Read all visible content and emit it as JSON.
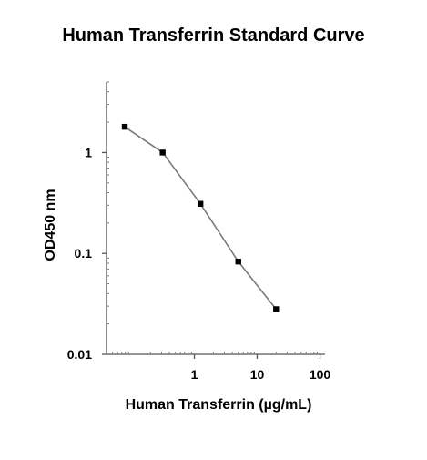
{
  "chart_data": {
    "type": "line",
    "title": "Human Transferrin Standard Curve",
    "xlabel": "Human Transferrin (µg/mL)",
    "ylabel": "OD450 nm",
    "x_scale": "log",
    "y_scale": "log",
    "xlim": [
      0.04,
      120
    ],
    "ylim": [
      0.01,
      5
    ],
    "x_ticks": [
      {
        "value": 1,
        "label": "1"
      },
      {
        "value": 10,
        "label": "10"
      },
      {
        "value": 100,
        "label": "100"
      }
    ],
    "y_ticks": [
      {
        "value": 1,
        "label": "1"
      },
      {
        "value": 0.1,
        "label": "0.1"
      },
      {
        "value": 0.01,
        "label": "0.01"
      }
    ],
    "grid": false,
    "series": [
      {
        "color": "#7a7a7a",
        "marker_color": "#000000",
        "x": [
          0.078,
          0.313,
          1.25,
          5.0,
          20.0
        ],
        "y": [
          1.8,
          1.0,
          0.31,
          0.083,
          0.028
        ]
      }
    ]
  }
}
